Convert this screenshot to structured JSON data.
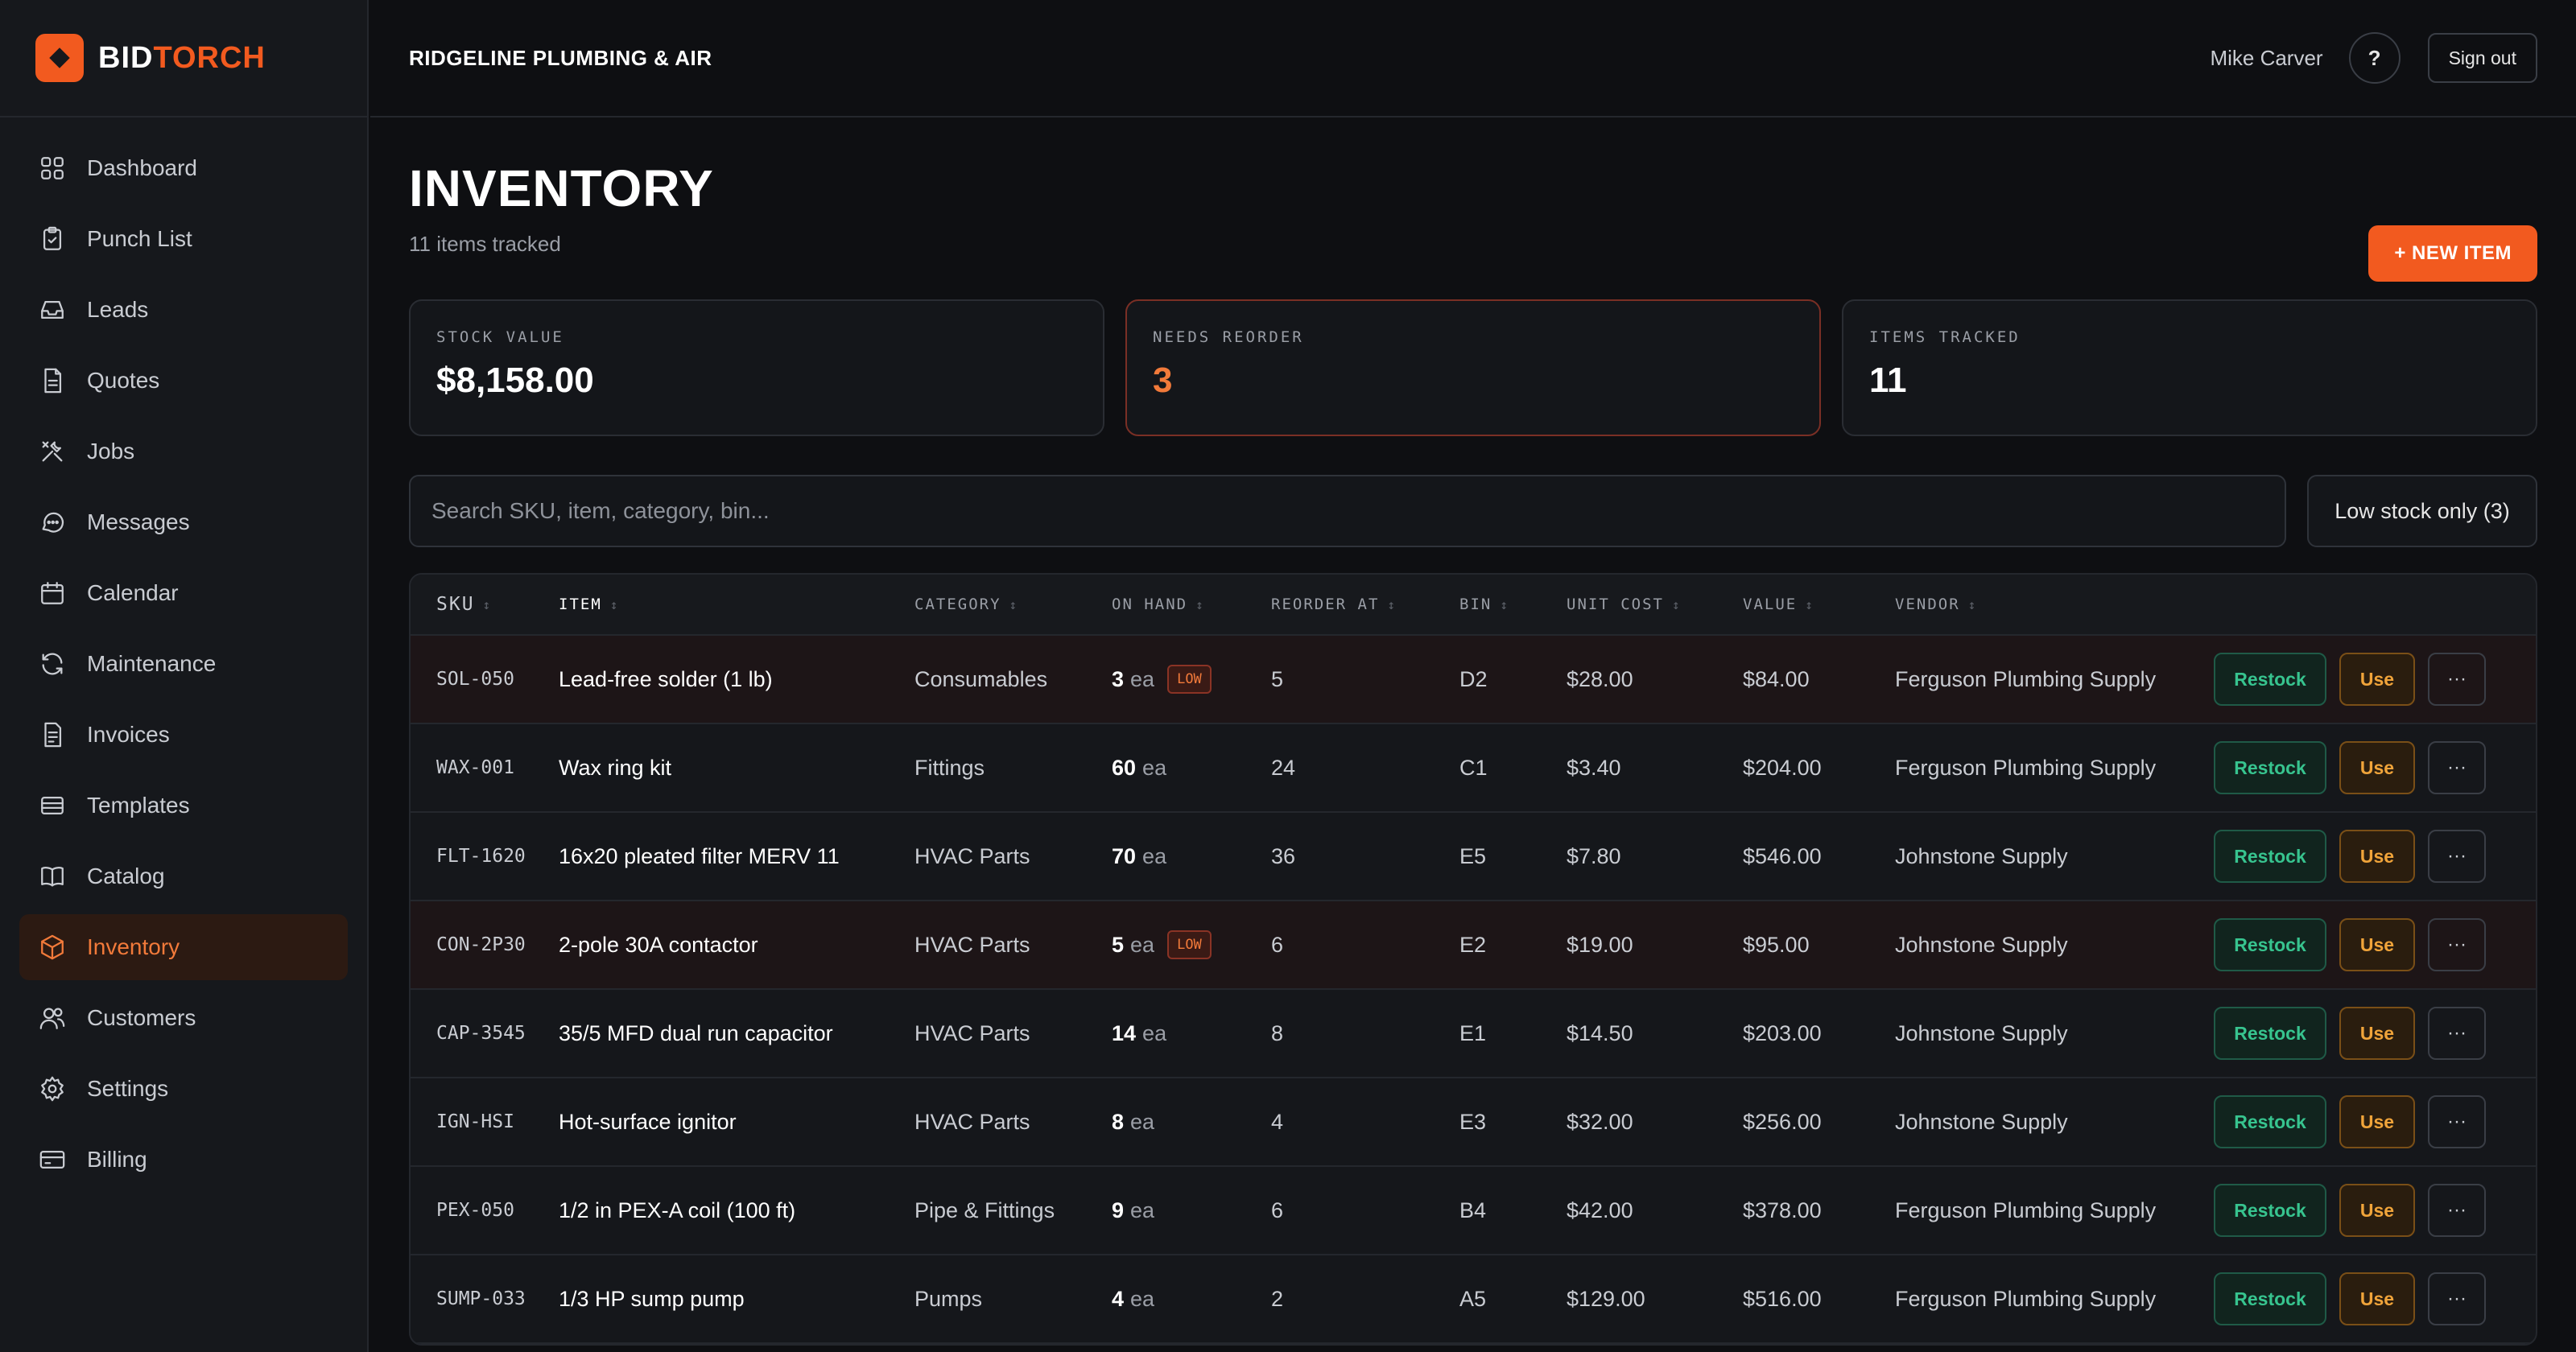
{
  "brand": {
    "part1": "BID",
    "part2": "TORCH"
  },
  "sidebar": {
    "items": [
      {
        "label": "Dashboard",
        "icon": "grid-icon"
      },
      {
        "label": "Punch List",
        "icon": "clipboard-check-icon"
      },
      {
        "label": "Leads",
        "icon": "inbox-icon"
      },
      {
        "label": "Quotes",
        "icon": "document-icon"
      },
      {
        "label": "Jobs",
        "icon": "tools-icon"
      },
      {
        "label": "Messages",
        "icon": "chat-icon"
      },
      {
        "label": "Calendar",
        "icon": "calendar-icon"
      },
      {
        "label": "Maintenance",
        "icon": "refresh-icon"
      },
      {
        "label": "Invoices",
        "icon": "invoice-icon"
      },
      {
        "label": "Templates",
        "icon": "stack-icon"
      },
      {
        "label": "Catalog",
        "icon": "book-icon"
      },
      {
        "label": "Inventory",
        "icon": "box-icon",
        "active": true
      },
      {
        "label": "Customers",
        "icon": "users-icon"
      },
      {
        "label": "Settings",
        "icon": "gear-icon"
      },
      {
        "label": "Billing",
        "icon": "credit-card-icon"
      }
    ]
  },
  "header": {
    "company": "RIDGELINE PLUMBING & AIR",
    "user": "Mike Carver",
    "help_label": "?",
    "signout_label": "Sign out"
  },
  "page": {
    "title": "INVENTORY",
    "subtitle": "11 items tracked",
    "new_button": "+ NEW ITEM"
  },
  "stats": [
    {
      "label": "STOCK VALUE",
      "value": "$8,158.00"
    },
    {
      "label": "NEEDS REORDER",
      "value": "3"
    },
    {
      "label": "ITEMS TRACKED",
      "value": "11"
    }
  ],
  "filters": {
    "search_placeholder": "Search SKU, item, category, bin...",
    "low_stock_label": "Low stock only (3)"
  },
  "table": {
    "columns": [
      "SKU",
      "ITEM",
      "CATEGORY",
      "ON HAND",
      "REORDER AT",
      "BIN",
      "UNIT COST",
      "VALUE",
      "VENDOR"
    ],
    "unit_label": "ea",
    "low_badge": "LOW",
    "actions": {
      "restock": "Restock",
      "use": "Use",
      "more": "···"
    },
    "rows": [
      {
        "sku": "SOL-050",
        "item": "Lead-free solder (1 lb)",
        "category": "Consumables",
        "on_hand": "3",
        "reorder_at": "5",
        "bin": "D2",
        "unit_cost": "$28.00",
        "value": "$84.00",
        "vendor": "Ferguson Plumbing Supply",
        "low": true
      },
      {
        "sku": "WAX-001",
        "item": "Wax ring kit",
        "category": "Fittings",
        "on_hand": "60",
        "reorder_at": "24",
        "bin": "C1",
        "unit_cost": "$3.40",
        "value": "$204.00",
        "vendor": "Ferguson Plumbing Supply",
        "low": false
      },
      {
        "sku": "FLT-1620",
        "item": "16x20 pleated filter MERV 11",
        "category": "HVAC Parts",
        "on_hand": "70",
        "reorder_at": "36",
        "bin": "E5",
        "unit_cost": "$7.80",
        "value": "$546.00",
        "vendor": "Johnstone Supply",
        "low": false
      },
      {
        "sku": "CON-2P30",
        "item": "2-pole 30A contactor",
        "category": "HVAC Parts",
        "on_hand": "5",
        "reorder_at": "6",
        "bin": "E2",
        "unit_cost": "$19.00",
        "value": "$95.00",
        "vendor": "Johnstone Supply",
        "low": true
      },
      {
        "sku": "CAP-3545",
        "item": "35/5 MFD dual run capacitor",
        "category": "HVAC Parts",
        "on_hand": "14",
        "reorder_at": "8",
        "bin": "E1",
        "unit_cost": "$14.50",
        "value": "$203.00",
        "vendor": "Johnstone Supply",
        "low": false
      },
      {
        "sku": "IGN-HSI",
        "item": "Hot-surface ignitor",
        "category": "HVAC Parts",
        "on_hand": "8",
        "reorder_at": "4",
        "bin": "E3",
        "unit_cost": "$32.00",
        "value": "$256.00",
        "vendor": "Johnstone Supply",
        "low": false
      },
      {
        "sku": "PEX-050",
        "item": "1/2 in PEX-A coil (100 ft)",
        "category": "Pipe & Fittings",
        "on_hand": "9",
        "reorder_at": "6",
        "bin": "B4",
        "unit_cost": "$42.00",
        "value": "$378.00",
        "vendor": "Ferguson Plumbing Supply",
        "low": false
      },
      {
        "sku": "SUMP-033",
        "item": "1/3 HP sump pump",
        "category": "Pumps",
        "on_hand": "4",
        "reorder_at": "2",
        "bin": "A5",
        "unit_cost": "$129.00",
        "value": "$516.00",
        "vendor": "Ferguson Plumbing Supply",
        "low": false
      }
    ]
  }
}
